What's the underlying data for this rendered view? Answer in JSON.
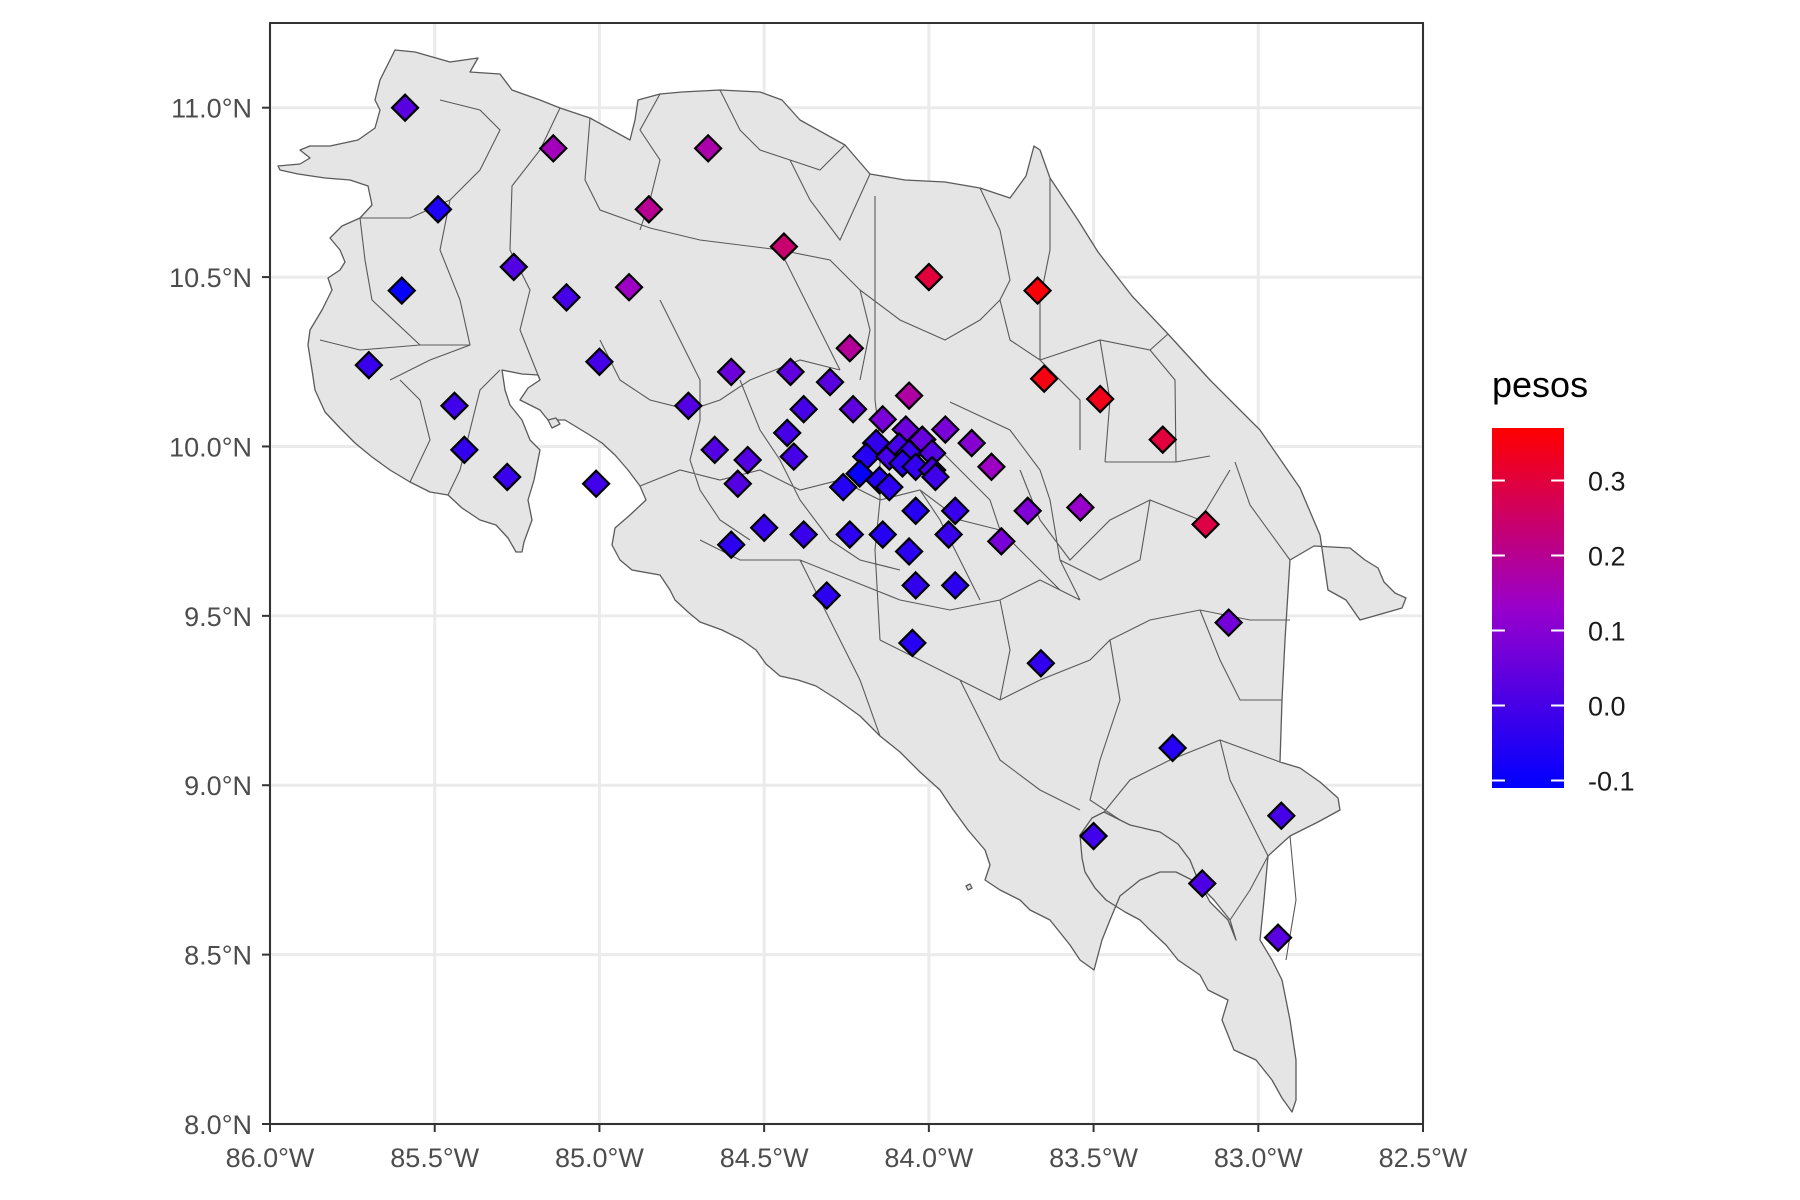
{
  "chart_data": {
    "type": "scatter",
    "title": "",
    "xlabel": "",
    "ylabel": "",
    "xlim": [
      -86.0,
      -82.5
    ],
    "ylim": [
      8.0,
      11.25
    ],
    "x_ticks": [
      {
        "value": -86.0,
        "label": "86.0°W"
      },
      {
        "value": -85.5,
        "label": "85.5°W"
      },
      {
        "value": -85.0,
        "label": "85.0°W"
      },
      {
        "value": -84.5,
        "label": "84.5°W"
      },
      {
        "value": -84.0,
        "label": "84.0°W"
      },
      {
        "value": -83.5,
        "label": "83.5°W"
      },
      {
        "value": -83.0,
        "label": "83.0°W"
      },
      {
        "value": -82.5,
        "label": "82.5°W"
      }
    ],
    "y_ticks": [
      {
        "value": 8.0,
        "label": "8.0°N"
      },
      {
        "value": 8.5,
        "label": "8.5°N"
      },
      {
        "value": 9.0,
        "label": "9.0°N"
      },
      {
        "value": 9.5,
        "label": "9.5°N"
      },
      {
        "value": 10.0,
        "label": "10.0°N"
      },
      {
        "value": 10.5,
        "label": "10.5°N"
      },
      {
        "value": 11.0,
        "label": "11.0°N"
      }
    ],
    "grid": true,
    "marker_shape": "diamond",
    "legend": {
      "title": "pesos",
      "position": "right",
      "type": "continuous-colorbar",
      "range": [
        -0.11,
        0.37
      ],
      "ticks": [
        {
          "value": -0.1,
          "label": "-0.1"
        },
        {
          "value": 0.0,
          "label": "0.0"
        },
        {
          "value": 0.1,
          "label": "0.1"
        },
        {
          "value": 0.2,
          "label": "0.2"
        },
        {
          "value": 0.3,
          "label": "0.3"
        }
      ],
      "color_low": "#0000ff",
      "color_mid": "#9900cc",
      "color_high": "#ff0000"
    },
    "points": [
      {
        "lon": -85.59,
        "lat": 11.0,
        "peso": 0.03
      },
      {
        "lon": -85.14,
        "lat": 10.88,
        "peso": 0.15
      },
      {
        "lon": -84.67,
        "lat": 10.88,
        "peso": 0.17
      },
      {
        "lon": -85.49,
        "lat": 10.7,
        "peso": -0.06
      },
      {
        "lon": -84.85,
        "lat": 10.7,
        "peso": 0.2
      },
      {
        "lon": -85.26,
        "lat": 10.53,
        "peso": 0.02
      },
      {
        "lon": -84.44,
        "lat": 10.59,
        "peso": 0.24
      },
      {
        "lon": -85.6,
        "lat": 10.46,
        "peso": -0.1
      },
      {
        "lon": -85.1,
        "lat": 10.44,
        "peso": 0.0
      },
      {
        "lon": -84.91,
        "lat": 10.47,
        "peso": 0.14
      },
      {
        "lon": -84.0,
        "lat": 10.5,
        "peso": 0.3
      },
      {
        "lon": -83.67,
        "lat": 10.46,
        "peso": 0.36
      },
      {
        "lon": -85.7,
        "lat": 10.24,
        "peso": -0.02
      },
      {
        "lon": -85.0,
        "lat": 10.25,
        "peso": 0.0
      },
      {
        "lon": -84.24,
        "lat": 10.29,
        "peso": 0.19
      },
      {
        "lon": -84.6,
        "lat": 10.22,
        "peso": 0.06
      },
      {
        "lon": -84.42,
        "lat": 10.22,
        "peso": 0.04
      },
      {
        "lon": -84.3,
        "lat": 10.19,
        "peso": 0.03
      },
      {
        "lon": -83.65,
        "lat": 10.2,
        "peso": 0.35
      },
      {
        "lon": -83.48,
        "lat": 10.14,
        "peso": 0.34
      },
      {
        "lon": -84.06,
        "lat": 10.15,
        "peso": 0.18
      },
      {
        "lon": -84.73,
        "lat": 10.12,
        "peso": 0.02
      },
      {
        "lon": -85.44,
        "lat": 10.12,
        "peso": -0.01
      },
      {
        "lon": -84.38,
        "lat": 10.11,
        "peso": 0.0
      },
      {
        "lon": -84.23,
        "lat": 10.11,
        "peso": 0.04
      },
      {
        "lon": -84.14,
        "lat": 10.08,
        "peso": 0.08
      },
      {
        "lon": -84.07,
        "lat": 10.05,
        "peso": 0.06
      },
      {
        "lon": -83.95,
        "lat": 10.05,
        "peso": 0.08
      },
      {
        "lon": -84.43,
        "lat": 10.04,
        "peso": 0.0
      },
      {
        "lon": -83.87,
        "lat": 10.01,
        "peso": 0.1
      },
      {
        "lon": -84.02,
        "lat": 10.02,
        "peso": 0.05
      },
      {
        "lon": -83.29,
        "lat": 10.02,
        "peso": 0.3
      },
      {
        "lon": -85.41,
        "lat": 9.99,
        "peso": -0.03
      },
      {
        "lon": -84.65,
        "lat": 9.99,
        "peso": 0.02
      },
      {
        "lon": -84.16,
        "lat": 10.01,
        "peso": -0.03
      },
      {
        "lon": -84.19,
        "lat": 9.97,
        "peso": -0.05
      },
      {
        "lon": -84.12,
        "lat": 9.97,
        "peso": 0.0
      },
      {
        "lon": -84.09,
        "lat": 10.0,
        "peso": 0.0
      },
      {
        "lon": -84.06,
        "lat": 9.98,
        "peso": -0.02
      },
      {
        "lon": -83.99,
        "lat": 9.98,
        "peso": 0.02
      },
      {
        "lon": -84.41,
        "lat": 9.97,
        "peso": 0.0
      },
      {
        "lon": -84.55,
        "lat": 9.96,
        "peso": 0.02
      },
      {
        "lon": -84.08,
        "lat": 9.95,
        "peso": -0.04
      },
      {
        "lon": -84.04,
        "lat": 9.94,
        "peso": -0.03
      },
      {
        "lon": -83.99,
        "lat": 9.93,
        "peso": 0.0
      },
      {
        "lon": -83.81,
        "lat": 9.94,
        "peso": 0.14
      },
      {
        "lon": -84.21,
        "lat": 9.92,
        "peso": -0.1
      },
      {
        "lon": -84.15,
        "lat": 9.9,
        "peso": -0.05
      },
      {
        "lon": -84.12,
        "lat": 9.88,
        "peso": -0.04
      },
      {
        "lon": -83.98,
        "lat": 9.91,
        "peso": -0.01
      },
      {
        "lon": -85.28,
        "lat": 9.91,
        "peso": -0.02
      },
      {
        "lon": -84.58,
        "lat": 9.89,
        "peso": 0.02
      },
      {
        "lon": -84.26,
        "lat": 9.88,
        "peso": -0.05
      },
      {
        "lon": -85.01,
        "lat": 9.89,
        "peso": -0.01
      },
      {
        "lon": -83.54,
        "lat": 9.82,
        "peso": 0.13
      },
      {
        "lon": -84.04,
        "lat": 9.81,
        "peso": -0.05
      },
      {
        "lon": -83.92,
        "lat": 9.81,
        "peso": -0.02
      },
      {
        "lon": -83.7,
        "lat": 9.81,
        "peso": 0.09
      },
      {
        "lon": -83.16,
        "lat": 9.77,
        "peso": 0.29
      },
      {
        "lon": -84.5,
        "lat": 9.76,
        "peso": -0.02
      },
      {
        "lon": -84.38,
        "lat": 9.74,
        "peso": -0.02
      },
      {
        "lon": -84.24,
        "lat": 9.74,
        "peso": -0.04
      },
      {
        "lon": -84.14,
        "lat": 9.74,
        "peso": -0.05
      },
      {
        "lon": -83.94,
        "lat": 9.74,
        "peso": -0.02
      },
      {
        "lon": -83.78,
        "lat": 9.72,
        "peso": 0.08
      },
      {
        "lon": -84.6,
        "lat": 9.71,
        "peso": -0.04
      },
      {
        "lon": -84.06,
        "lat": 9.69,
        "peso": -0.04
      },
      {
        "lon": -84.04,
        "lat": 9.59,
        "peso": -0.03
      },
      {
        "lon": -83.92,
        "lat": 9.59,
        "peso": -0.04
      },
      {
        "lon": -84.31,
        "lat": 9.56,
        "peso": -0.04
      },
      {
        "lon": -83.09,
        "lat": 9.48,
        "peso": 0.07
      },
      {
        "lon": -84.05,
        "lat": 9.42,
        "peso": -0.05
      },
      {
        "lon": -83.66,
        "lat": 9.36,
        "peso": -0.03
      },
      {
        "lon": -83.26,
        "lat": 9.11,
        "peso": -0.05
      },
      {
        "lon": -82.93,
        "lat": 8.91,
        "peso": 0.0
      },
      {
        "lon": -83.5,
        "lat": 8.85,
        "peso": -0.01
      },
      {
        "lon": -83.17,
        "lat": 8.71,
        "peso": 0.01
      },
      {
        "lon": -82.94,
        "lat": 8.55,
        "peso": 0.03
      }
    ]
  }
}
